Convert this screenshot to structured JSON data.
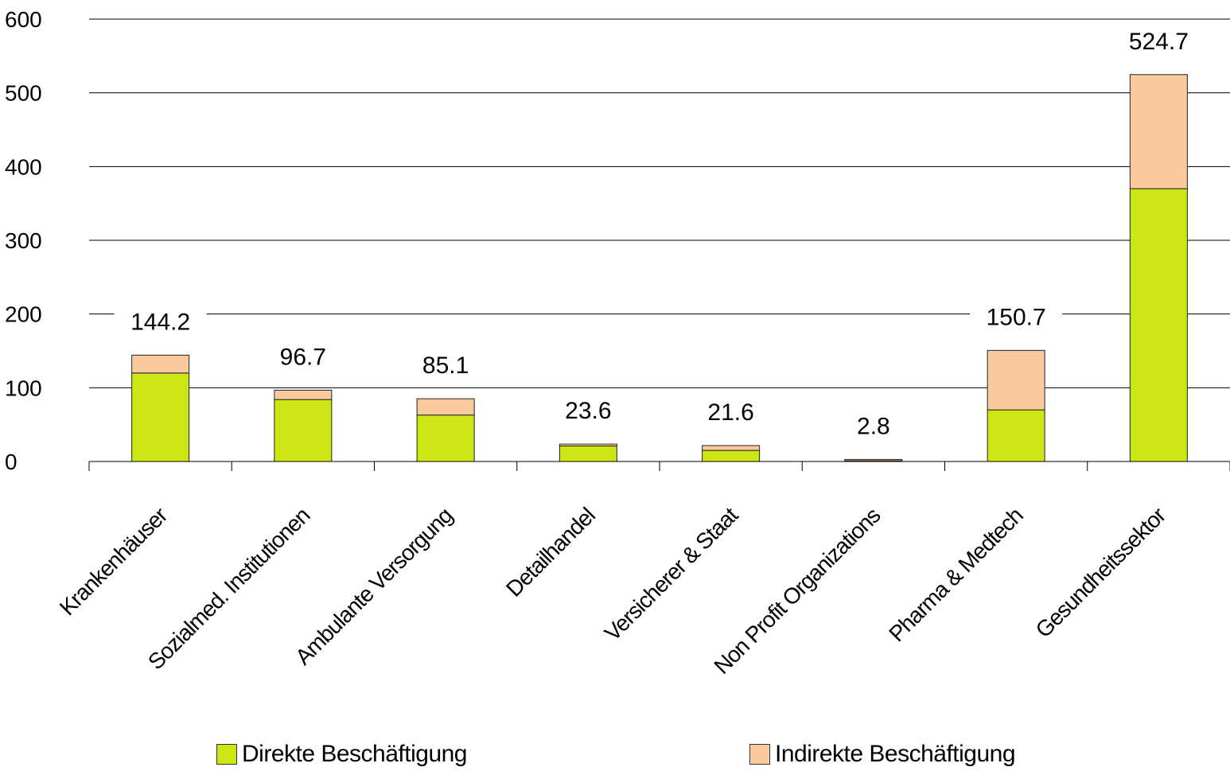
{
  "chart_data": {
    "type": "bar",
    "stacked": true,
    "categories": [
      "Krankenhäuser",
      "Sozialmed. Institutionen",
      "Ambulante Versorgung",
      "Detailhandel",
      "Versicherer & Staat",
      "Non Profit Organizations",
      "Pharma & Medtech",
      "Gesundheitssektor"
    ],
    "series": [
      {
        "name": "Direkte Beschäftigung",
        "color": "#cce614",
        "values": [
          120,
          84,
          63,
          21,
          15,
          1,
          70,
          370
        ]
      },
      {
        "name": "Indirekte Beschäftigung",
        "color": "#fbc99e",
        "values": [
          24.2,
          12.7,
          22.1,
          2.6,
          6.6,
          1.8,
          80.7,
          154.7
        ]
      }
    ],
    "totals": [
      "144.2",
      "96.7",
      "85.1",
      "23.6",
      "21.6",
      "2.8",
      "150.7",
      "524.7"
    ],
    "y_ticks": [
      "0",
      "100",
      "200",
      "300",
      "400",
      "500",
      "600"
    ],
    "ylim": [
      0,
      600
    ],
    "grid": true,
    "legend_position": "bottom"
  }
}
